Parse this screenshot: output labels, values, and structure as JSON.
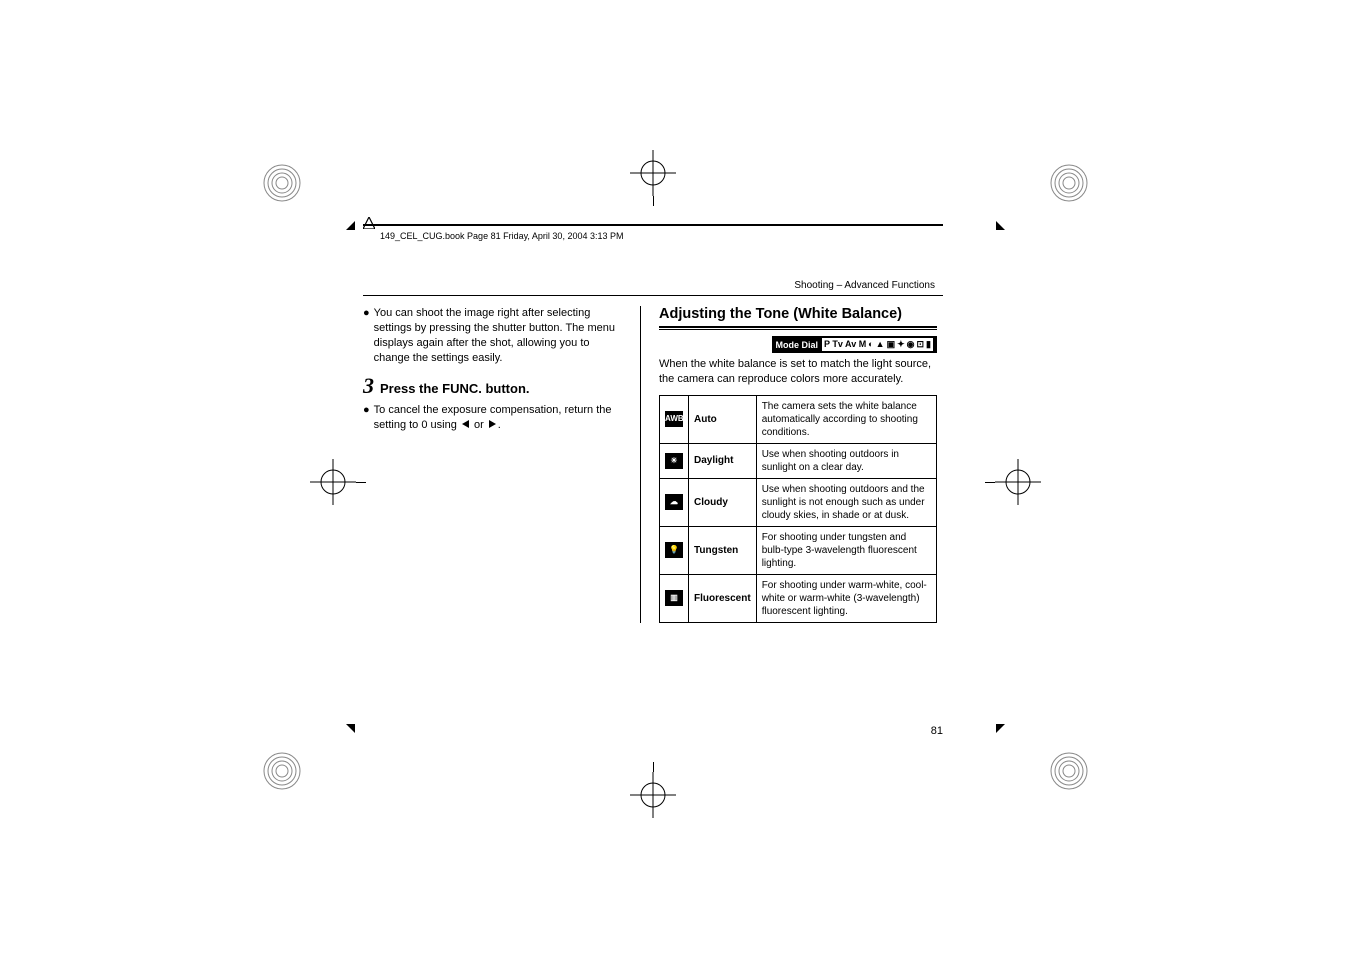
{
  "header": {
    "book_line": "149_CEL_CUG.book  Page 81  Friday, April 30, 2004  3:13 PM",
    "section": "Shooting – Advanced Functions"
  },
  "left_col": {
    "bullet1": "You can shoot the image right after selecting settings by pressing the shutter button. The menu displays again after the shot, allowing you to change the settings easily.",
    "step_num": "3",
    "step_text": "Press the FUNC. button.",
    "bullet2_a": "To cancel the exposure compensation, return the setting to 0 using ",
    "bullet2_b": " or ",
    "bullet2_c": "."
  },
  "right_col": {
    "title": "Adjusting the Tone (White Balance)",
    "mode_dial_label": "Mode Dial",
    "mode_dial_glyphs": "P Tv Av M",
    "intro": "When the white balance is set to match the light source, the camera can reproduce colors more accurately.",
    "table": [
      {
        "icon": "AWB",
        "name": "Auto",
        "desc": "The camera sets the white balance automatically according to shooting conditions."
      },
      {
        "icon": "☀",
        "name": "Daylight",
        "desc": "Use when shooting outdoors in sunlight on a clear day."
      },
      {
        "icon": "☁",
        "name": "Cloudy",
        "desc": "Use when shooting outdoors and the sunlight is not enough such as under cloudy skies, in shade or at dusk."
      },
      {
        "icon": "💡",
        "name": "Tungsten",
        "desc": "For shooting under tungsten and bulb-type 3-wavelength fluorescent lighting."
      },
      {
        "icon": "▥",
        "name": "Fluorescent",
        "desc": "For shooting under warm-white, cool-white or warm-white (3-wavelength) fluorescent lighting."
      }
    ]
  },
  "page_number": "81",
  "colors": {
    "text": "#000000",
    "bg": "#ffffff",
    "icon_bg": "#000000",
    "icon_fg": "#ffffff"
  }
}
